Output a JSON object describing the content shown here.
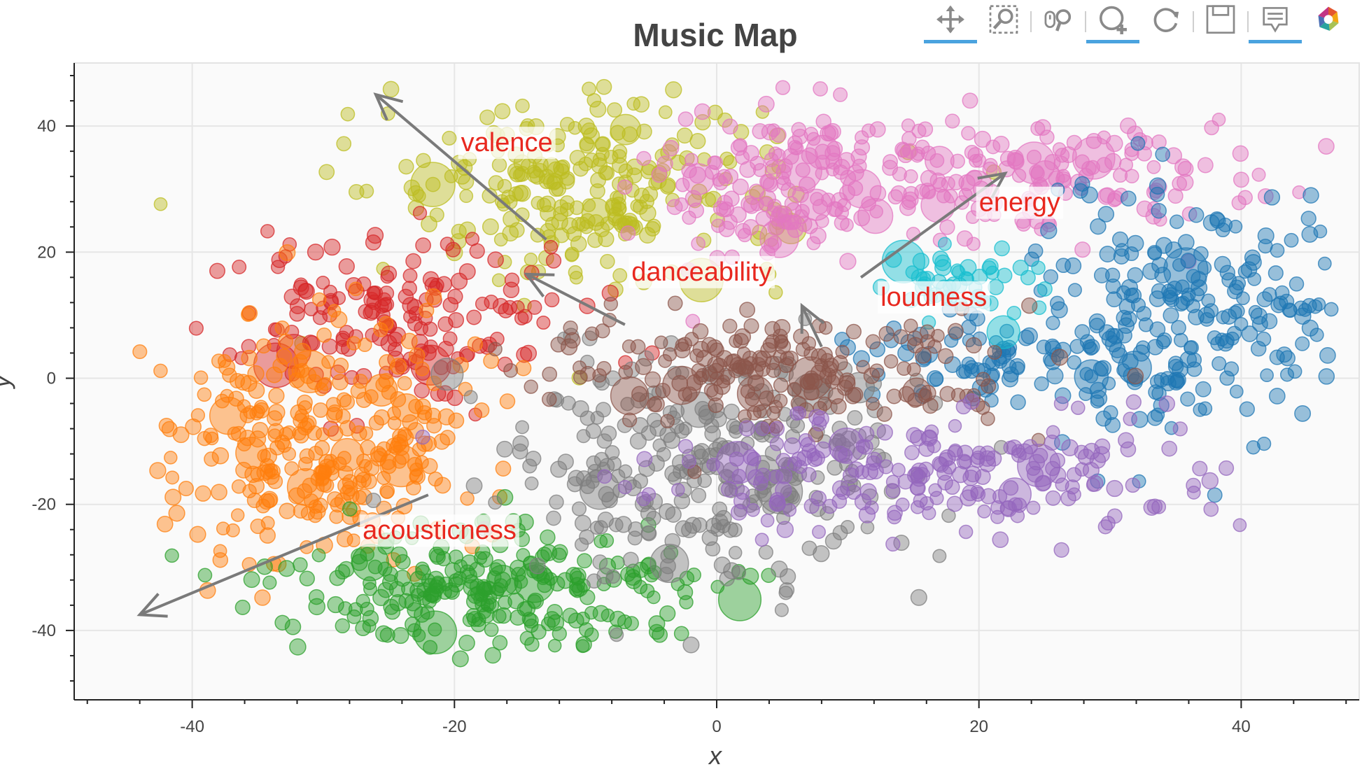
{
  "chart_data": {
    "type": "scatter",
    "title": "Music Map",
    "xlabel": "x",
    "ylabel": "y",
    "xlim": [
      -49,
      49
    ],
    "ylim": [
      -51,
      50
    ],
    "xticks": [
      -40,
      -20,
      0,
      20,
      40
    ],
    "yticks": [
      -40,
      -20,
      0,
      20,
      40
    ],
    "grid": true,
    "legend": "none",
    "point_opacity": 0.45,
    "clusters": [
      {
        "color": "#bcbd22",
        "cx": -10,
        "cy": 30,
        "sx": 8.0,
        "sy": 7.0,
        "n": 260
      },
      {
        "color": "#e377c2",
        "cx": 4,
        "cy": 30,
        "sx": 4.5,
        "sy": 8.0,
        "n": 130
      },
      {
        "color": "#e377c2",
        "cx": 22,
        "cy": 32,
        "sx": 9.0,
        "sy": 5.0,
        "n": 190
      },
      {
        "color": "#1f77b4",
        "cx": 36,
        "cy": 10,
        "sx": 6.0,
        "sy": 9.0,
        "n": 240
      },
      {
        "color": "#1f77b4",
        "cx": 22,
        "cy": 3,
        "sx": 6.0,
        "sy": 3.0,
        "n": 80
      },
      {
        "color": "#17becf",
        "cx": 19,
        "cy": 15,
        "sx": 3.0,
        "sy": 3.0,
        "n": 50
      },
      {
        "color": "#d62728",
        "cx": -24,
        "cy": 10,
        "sx": 6.5,
        "sy": 6.0,
        "n": 170
      },
      {
        "color": "#ff7f0e",
        "cx": -30,
        "cy": -10,
        "sx": 6.0,
        "sy": 9.0,
        "n": 300
      },
      {
        "color": "#2ca02c",
        "cx": -18,
        "cy": -34,
        "sx": 8.0,
        "sy": 5.0,
        "n": 260
      },
      {
        "color": "#7f7f7f",
        "cx": -1,
        "cy": -15,
        "sx": 8.0,
        "sy": 9.0,
        "n": 300
      },
      {
        "color": "#8c564b",
        "cx": 6,
        "cy": 1,
        "sx": 9.0,
        "sy": 4.5,
        "n": 200
      },
      {
        "color": "#9467bd",
        "cx": 16,
        "cy": -15,
        "sx": 10.0,
        "sy": 5.0,
        "n": 220
      }
    ],
    "arrows": [
      {
        "label": "valence",
        "from": [
          -13,
          22
        ],
        "to": [
          -26,
          45
        ],
        "label_at": [
          -19.5,
          36
        ]
      },
      {
        "label": "danceability",
        "from": [
          -7,
          8.5
        ],
        "to": [
          -14.5,
          16.5
        ],
        "label_at": [
          -6.5,
          15.5
        ]
      },
      {
        "label": "loudness",
        "from": [
          8,
          5
        ],
        "to": [
          6.5,
          11.5
        ],
        "label_at": [
          12.5,
          11.5
        ]
      },
      {
        "label": "energy",
        "from": [
          11,
          16
        ],
        "to": [
          22,
          32.5
        ],
        "label_at": [
          20,
          26.5
        ]
      },
      {
        "label": "acousticness",
        "from": [
          -22,
          -18.5
        ],
        "to": [
          -44,
          -37.5
        ],
        "label_at": [
          -27,
          -25.5
        ]
      }
    ]
  },
  "toolbar": {
    "tools": [
      {
        "name": "pan",
        "icon": "pan-icon",
        "active": true
      },
      {
        "name": "box-zoom",
        "icon": "box-zoom-icon",
        "active": false
      },
      {
        "name": "wheel-zoom",
        "icon": "wheel-zoom-icon",
        "active": false
      },
      {
        "name": "zoom-in",
        "icon": "zoom-in-icon",
        "active": true
      },
      {
        "name": "reset",
        "icon": "reset-icon",
        "active": false
      },
      {
        "name": "save",
        "icon": "save-icon",
        "active": false
      },
      {
        "name": "hover",
        "icon": "hover-icon",
        "active": true
      },
      {
        "name": "bokeh-logo",
        "icon": "bokeh-logo-icon",
        "active": false
      }
    ]
  },
  "colors": {
    "annotation_text": "#e8281f",
    "arrow": "#7a7a7a",
    "plot_background": "#fafafa",
    "grid": "#e6e6e6",
    "tool_active": "#4aa3df"
  }
}
